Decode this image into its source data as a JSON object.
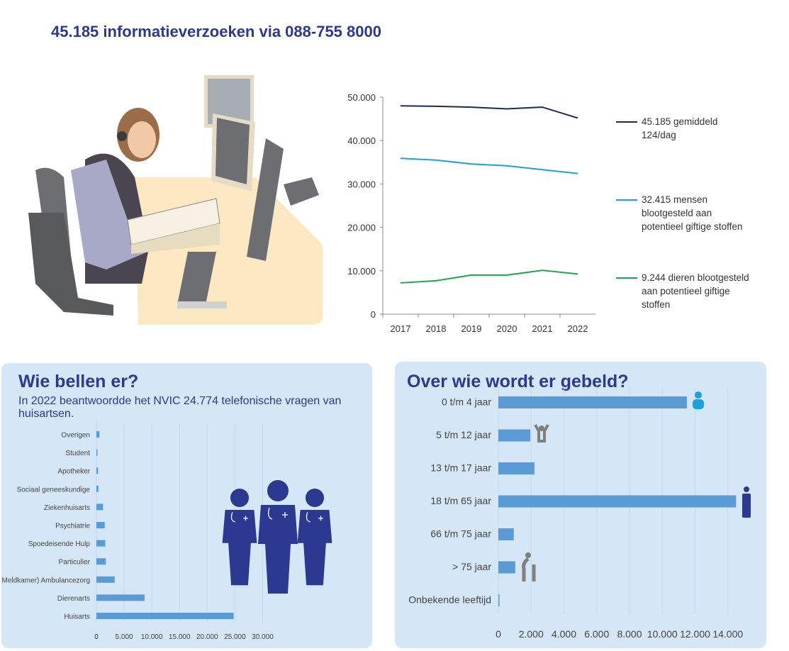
{
  "header": {
    "title": "45.185 informatieverzoeken via 088-755 8000"
  },
  "colors": {
    "dark": "#1b2a5e",
    "light": "#1ba1dc",
    "green": "#1aa84a",
    "bar": "#5b9bd5",
    "panel": "#d5e6f6",
    "title": "#2b3990"
  },
  "chart_data": [
    {
      "type": "line",
      "x": [
        "2017",
        "2018",
        "2019",
        "2020",
        "2021",
        "2022"
      ],
      "ylim": [
        0,
        50000
      ],
      "yticks": [
        "0",
        "10.000",
        "20.000",
        "30.000",
        "40.000",
        "50.000"
      ],
      "series": [
        {
          "name": "45.185 gemiddeld 124/dag",
          "lines": [
            "45.185 gemiddeld",
            "124/dag"
          ],
          "values": [
            48000,
            47900,
            47700,
            47300,
            47700,
            45185
          ]
        },
        {
          "name": "32.415 mensen blootgesteld aan potentieel giftige stoffen",
          "lines": [
            "32.415 mensen",
            "blootgesteld aan",
            "potentieel giftige stoffen"
          ],
          "values": [
            35900,
            35500,
            34600,
            34200,
            33300,
            32415
          ]
        },
        {
          "name": "9.244 dieren blootgesteld aan potentieel giftige stoffen",
          "lines": [
            "9.244 dieren blootgesteld",
            "aan potentieel giftige",
            "stoffen"
          ],
          "values": [
            7200,
            7700,
            9000,
            9000,
            10100,
            9244
          ]
        }
      ]
    },
    {
      "type": "bar",
      "title": "Wie bellen er?",
      "subtitle": "In 2022 beantwoordde het NVIC 24.774 telefonische vragen van huisartsen.",
      "categories": [
        "Overigen",
        "Student",
        "Apotheker",
        "Sociaal geneeskundige",
        "Ziekenhuisarts",
        "Psychiatrie",
        "Spoedeisende Hulp",
        "Particulier",
        "(Meldkamer) Ambulancezorg",
        "Dierenarts",
        "Huisarts"
      ],
      "values": [
        550,
        50,
        300,
        350,
        1200,
        1500,
        1600,
        1700,
        3300,
        8700,
        24774
      ],
      "xlim": [
        0,
        32500
      ],
      "xticks": [
        "0",
        "5.000",
        "10.000",
        "15.000",
        "20.000",
        "25.000",
        "30.000"
      ]
    },
    {
      "type": "bar",
      "title": "Over wie wordt er gebeld?",
      "categories": [
        "0 t/m 4 jaar",
        "5 t/m 12 jaar",
        "13 t/m 17 jaar",
        "18 t/m 65 jaar",
        "66 t/m 75 jaar",
        "> 75 jaar",
        "Onbekende leeftijd"
      ],
      "values": [
        11500,
        1950,
        2200,
        14500,
        940,
        1030,
        60
      ],
      "xlim": [
        0,
        16000
      ],
      "xticks": [
        "0",
        "2.000",
        "4.000",
        "6.000",
        "8.000",
        "10.000",
        "12.000",
        "14.000"
      ]
    }
  ]
}
